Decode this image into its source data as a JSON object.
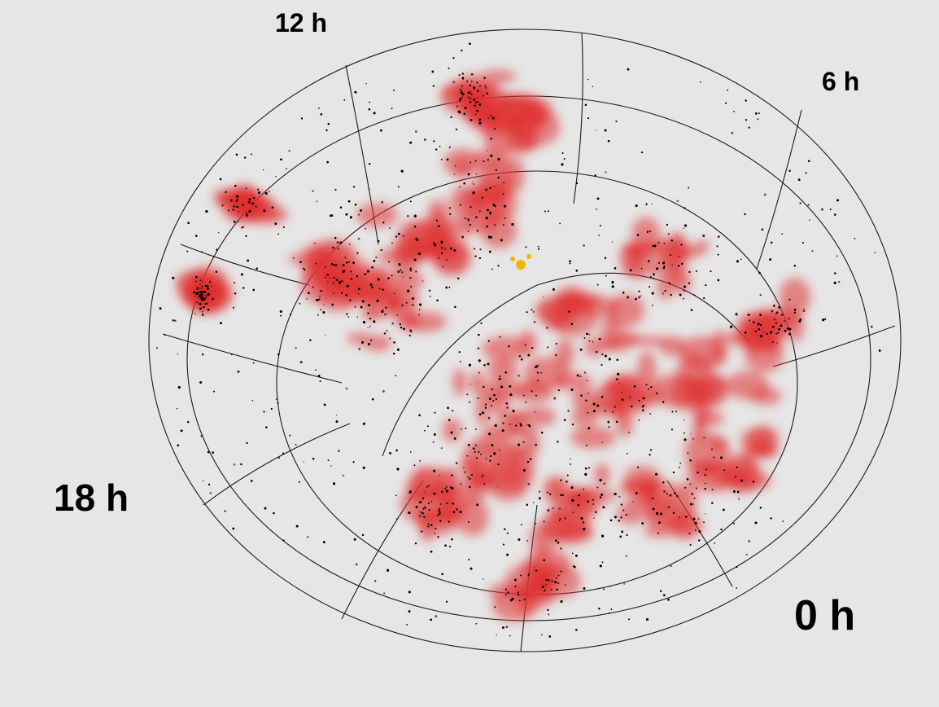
{
  "hour_labels": {
    "h12": "12 h",
    "h6": "6 h",
    "h18": "18 h",
    "h0": "0 h"
  },
  "colors": {
    "background": "#e6e6e6",
    "grid_lines": "#1a1a1a",
    "galaxy_points": "#000000",
    "structure_fill": "#e03030",
    "core_highlight": "#f2b800"
  }
}
